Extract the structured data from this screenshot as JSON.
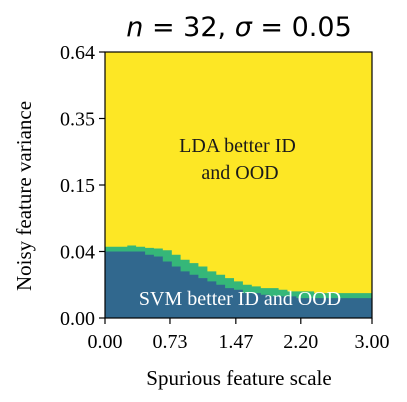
{
  "chart_data": {
    "type": "heatmap",
    "title": "n = 32, σ = 0.05",
    "title_parts": {
      "n": "32",
      "sigma": "0.05"
    },
    "xlabel": "Spurious feature scale",
    "ylabel": "Noisy feature variance",
    "xlim": [
      0,
      3.0
    ],
    "x_ticks": [
      "0.00",
      "0.73",
      "1.47",
      "2.20",
      "3.00"
    ],
    "y_ticks": [
      "0.00",
      "0.04",
      "0.15",
      "0.35",
      "0.64"
    ],
    "y_scale": "nonlinear (tick values at equal spacing)",
    "colors": {
      "lda_region": "#fde725",
      "transition": "#35b779",
      "svm_region": "#31688e"
    },
    "annotations": [
      {
        "line1": "LDA better ID",
        "line2": "and OOD",
        "region": "lda"
      },
      {
        "line1": "SVM better ID and OOD",
        "region": "svm"
      }
    ],
    "x_samples": [
      0.0,
      0.1,
      0.2,
      0.3,
      0.4,
      0.5,
      0.6,
      0.7,
      0.8,
      0.9,
      1.0,
      1.1,
      1.2,
      1.3,
      1.4,
      1.5,
      1.6,
      1.7,
      1.8,
      1.9,
      2.0,
      2.1,
      2.2,
      2.3,
      2.4,
      2.5,
      2.6,
      2.7,
      2.8,
      2.9,
      3.0
    ],
    "svm_upper_variance": [
      0.04,
      0.04,
      0.04,
      0.04,
      0.04,
      0.038,
      0.037,
      0.034,
      0.031,
      0.028,
      0.026,
      0.024,
      0.022,
      0.02,
      0.018,
      0.017,
      0.015,
      0.015,
      0.014,
      0.013,
      0.013,
      0.013,
      0.012,
      0.012,
      0.012,
      0.012,
      0.012,
      0.012,
      0.012,
      0.012,
      0.012
    ],
    "transition_upper_variance": [
      0.048,
      0.048,
      0.048,
      0.05,
      0.048,
      0.046,
      0.045,
      0.042,
      0.038,
      0.035,
      0.033,
      0.031,
      0.028,
      0.026,
      0.024,
      0.022,
      0.02,
      0.019,
      0.018,
      0.018,
      0.017,
      0.016,
      0.016,
      0.016,
      0.015,
      0.015,
      0.015,
      0.015,
      0.015,
      0.015,
      0.015
    ]
  }
}
